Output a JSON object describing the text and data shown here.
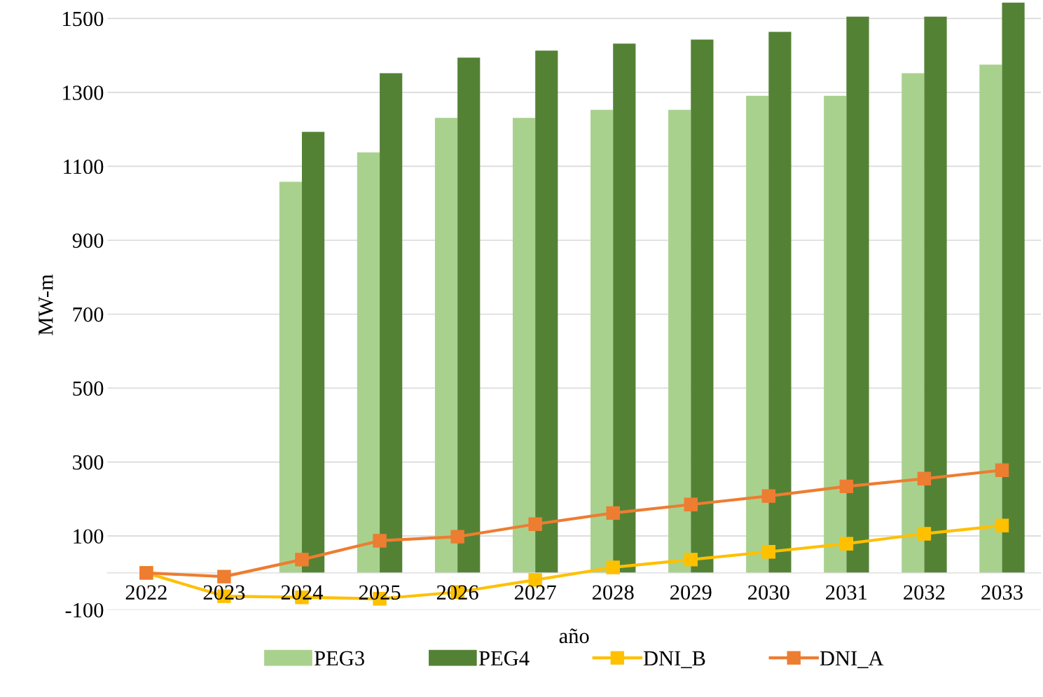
{
  "chart_data": {
    "type": "bar",
    "xlabel": "año",
    "ylabel": "MW-m",
    "categories": [
      "2022",
      "2023",
      "2024",
      "2025",
      "2026",
      "2027",
      "2028",
      "2029",
      "2030",
      "2031",
      "2032",
      "2033"
    ],
    "series": [
      {
        "name": "PEG3",
        "color": "#a9d18e",
        "values": [
          null,
          null,
          1058,
          1138,
          1231,
          1231,
          1253,
          1253,
          1291,
          1291,
          1352,
          1375
        ]
      },
      {
        "name": "PEG4",
        "color": "#548235",
        "values": [
          null,
          null,
          1193,
          1352,
          1394,
          1413,
          1432,
          1443,
          1464,
          1505,
          1505,
          1543
        ]
      },
      {
        "name": "DNI_B",
        "type": "line",
        "color": "#ffc000",
        "values": [
          0,
          -63,
          -66,
          -70,
          -52,
          -19,
          15,
          36,
          57,
          79,
          106,
          128
        ]
      },
      {
        "name": "DNI_A",
        "type": "line",
        "color": "#ed7d31",
        "values": [
          0,
          -10,
          36,
          87,
          98,
          132,
          162,
          185,
          208,
          234,
          255,
          278
        ]
      }
    ],
    "ylim": [
      -100,
      1550
    ],
    "yticks": [
      -100,
      100,
      300,
      500,
      700,
      900,
      1100,
      1300,
      1500
    ],
    "grid": "y",
    "legend": "bottom",
    "marker": "square",
    "line_style": "solid"
  }
}
